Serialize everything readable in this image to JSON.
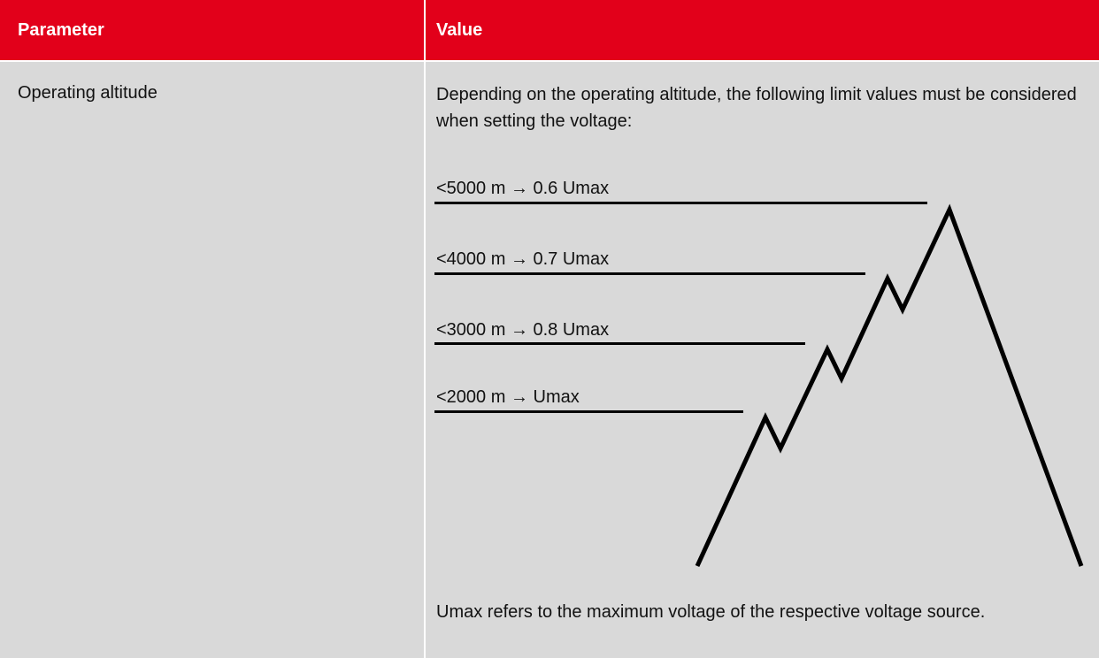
{
  "table": {
    "headers": [
      "Parameter",
      "Value"
    ],
    "rows": [
      {
        "parameter": "Operating altitude",
        "description": "Depending on the operating altitude, the following limit values must be considered when setting the voltage:",
        "limits": [
          "<5000 m → 0.6 Umax",
          "<4000 m → 0.7 Umax",
          "<3000 m → 0.8 Umax",
          "<2000 m → Umax"
        ],
        "note": "Umax refers to the maximum voltage of the respective voltage source."
      }
    ]
  }
}
